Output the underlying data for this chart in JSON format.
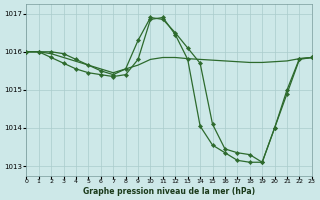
{
  "series1_x": [
    0,
    1,
    2,
    3,
    4,
    5,
    6,
    7,
    8,
    9,
    10,
    11,
    12,
    13,
    14,
    15,
    16,
    17,
    18,
    19,
    20,
    21,
    22,
    23
  ],
  "series1_y": [
    1016.0,
    1016.0,
    1015.95,
    1015.85,
    1015.75,
    1015.65,
    1015.55,
    1015.45,
    1015.55,
    1015.65,
    1015.8,
    1015.85,
    1015.85,
    1015.82,
    1015.8,
    1015.78,
    1015.76,
    1015.74,
    1015.72,
    1015.72,
    1015.74,
    1015.76,
    1015.82,
    1015.85
  ],
  "series2_x": [
    0,
    1,
    2,
    3,
    4,
    5,
    6,
    7,
    8,
    9,
    10,
    11,
    12,
    13,
    14,
    15,
    16,
    17,
    18,
    19,
    20,
    21,
    22,
    23
  ],
  "series2_y": [
    1016.0,
    1016.0,
    1015.85,
    1015.7,
    1015.55,
    1015.45,
    1015.4,
    1015.35,
    1015.4,
    1015.8,
    1016.85,
    1016.9,
    1016.45,
    1015.8,
    1014.05,
    1013.55,
    1013.35,
    1013.15,
    1013.1,
    1013.1,
    1014.0,
    1014.9,
    1015.8,
    1015.85
  ],
  "series3_x": [
    0,
    1,
    2,
    3,
    4,
    5,
    6,
    7,
    8,
    9,
    10,
    11,
    12,
    13,
    14,
    15,
    16,
    17,
    18,
    19,
    20,
    21,
    22,
    23
  ],
  "series3_y": [
    1016.0,
    1016.0,
    1016.0,
    1015.95,
    1015.8,
    1015.65,
    1015.5,
    1015.4,
    1015.55,
    1016.3,
    1016.9,
    1016.85,
    1016.5,
    1016.1,
    1015.7,
    1014.1,
    1013.45,
    1013.35,
    1013.3,
    1013.1,
    1014.0,
    1015.0,
    1015.82,
    1015.85
  ],
  "line_color": "#2d6a2d",
  "bg_color": "#cde8e8",
  "grid_color": "#aacccc",
  "xlabel": "Graphe pression niveau de la mer (hPa)",
  "xlim": [
    0,
    23
  ],
  "ylim": [
    1012.75,
    1017.25
  ],
  "yticks": [
    1013,
    1014,
    1015,
    1016,
    1017
  ],
  "xticks": [
    0,
    1,
    2,
    3,
    4,
    5,
    6,
    7,
    8,
    9,
    10,
    11,
    12,
    13,
    14,
    15,
    16,
    17,
    18,
    19,
    20,
    21,
    22,
    23
  ],
  "xticklabels": [
    "0",
    "1",
    "2",
    "3",
    "4",
    "5",
    "6",
    "7",
    "8",
    "9",
    "10",
    "11",
    "12",
    "13",
    "14",
    "15",
    "16",
    "17",
    "18",
    "19",
    "20",
    "21",
    "22",
    "23"
  ]
}
